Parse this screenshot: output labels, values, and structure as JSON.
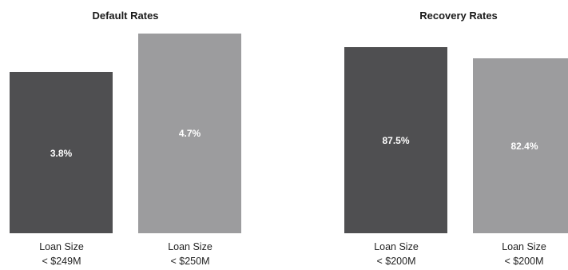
{
  "chart_data": [
    {
      "type": "bar",
      "title": "Default Rates",
      "categories": [
        [
          "Loan Size",
          "< $249M"
        ],
        [
          "Loan Size",
          "< $250M"
        ]
      ],
      "values": [
        3.8,
        4.7
      ],
      "value_labels": [
        "3.8%",
        "4.7%"
      ],
      "colors": [
        "#4f4f51",
        "#9c9c9e"
      ],
      "xlabel": "",
      "ylabel": "",
      "grid": false
    },
    {
      "type": "bar",
      "title": "Recovery Rates",
      "categories": [
        [
          "Loan Size",
          "< $200M"
        ],
        [
          "Loan Size",
          "< $200M"
        ]
      ],
      "values": [
        87.5,
        82.4
      ],
      "value_labels": [
        "87.5%",
        "82.4%"
      ],
      "colors": [
        "#4f4f51",
        "#9c9c9e"
      ],
      "xlabel": "",
      "ylabel": "",
      "grid": false
    }
  ]
}
